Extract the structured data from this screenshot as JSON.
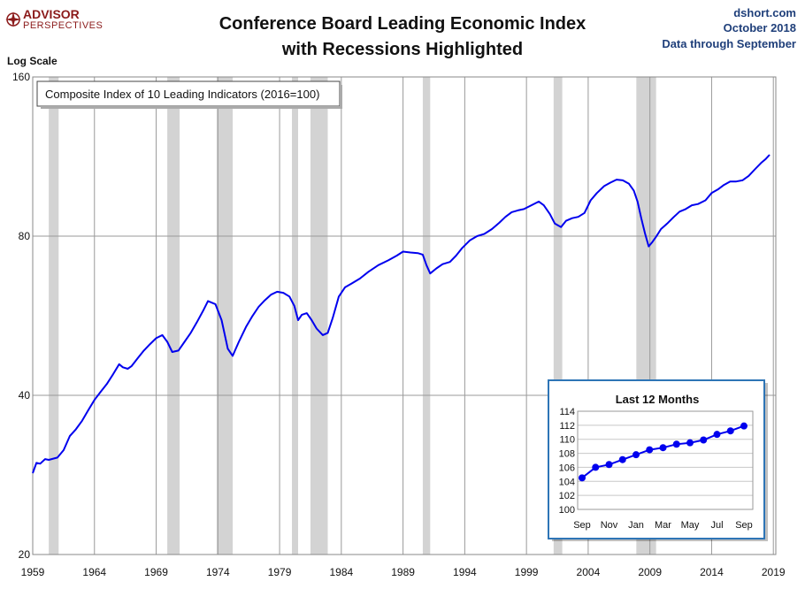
{
  "header": {
    "logo_line1": "ADVISOR",
    "logo_line2": "PERSPECTIVES",
    "source_site": "dshort.com",
    "source_date": "October 2018",
    "source_note": "Data through September"
  },
  "colors": {
    "series": "#0000ee",
    "recession": "#d3d3d3",
    "grid": "#9a9a9a",
    "logo": "#8b1a1a",
    "source_text": "#1f3f7a",
    "inset_border": "#2e75b6"
  },
  "chart_data": [
    {
      "type": "line",
      "title": "Conference Board Leading Economic Index with Recessions Highlighted",
      "title_lines": [
        "Conference Board Leading Economic Index",
        "with Recessions Highlighted"
      ],
      "ylabel": "Log Scale",
      "y_scale": "log",
      "ylim": [
        20,
        160
      ],
      "y_ticks": [
        20,
        40,
        80,
        160
      ],
      "xlim": [
        1959,
        2019.2
      ],
      "x_ticks": [
        1959,
        1964,
        1969,
        1974,
        1979,
        1984,
        1989,
        1994,
        1999,
        2004,
        2009,
        2014,
        2019
      ],
      "grid": true,
      "legend": {
        "label": "Composite Index of 10 Leading Indicators (2016=100)",
        "placement": "top-left"
      },
      "recessions": [
        [
          1960.3,
          1961.1
        ],
        [
          1969.9,
          1970.9
        ],
        [
          1973.9,
          1975.2
        ],
        [
          1980.0,
          1980.5
        ],
        [
          1981.5,
          1982.9
        ],
        [
          1990.6,
          1991.2
        ],
        [
          2001.2,
          2001.9
        ],
        [
          2007.9,
          2009.5
        ]
      ],
      "series": [
        {
          "name": "Composite Index of 10 Leading Indicators (2016=100)",
          "x": [
            1959.0,
            1959.3,
            1959.6,
            1960.0,
            1960.3,
            1961.0,
            1961.5,
            1962.0,
            1962.5,
            1963.0,
            1963.5,
            1964.0,
            1964.5,
            1965.0,
            1965.5,
            1966.0,
            1966.3,
            1966.7,
            1967.0,
            1967.5,
            1968.0,
            1968.5,
            1969.0,
            1969.5,
            1969.9,
            1970.3,
            1970.8,
            1971.3,
            1971.8,
            1972.3,
            1972.8,
            1973.2,
            1973.8,
            1974.3,
            1974.8,
            1975.2,
            1975.7,
            1976.3,
            1976.8,
            1977.3,
            1977.8,
            1978.3,
            1978.8,
            1979.3,
            1979.8,
            1980.2,
            1980.5,
            1980.8,
            1981.2,
            1981.6,
            1982.0,
            1982.5,
            1982.9,
            1983.3,
            1983.8,
            1984.3,
            1984.8,
            1985.5,
            1986.2,
            1987.0,
            1987.8,
            1988.5,
            1989.0,
            1989.6,
            1990.2,
            1990.6,
            1990.9,
            1991.2,
            1991.7,
            1992.2,
            1992.8,
            1993.3,
            1993.8,
            1994.4,
            1995.0,
            1995.6,
            1996.2,
            1996.8,
            1997.3,
            1997.8,
            1998.3,
            1998.8,
            1999.4,
            2000.0,
            2000.4,
            2000.9,
            2001.3,
            2001.8,
            2002.2,
            2002.7,
            2003.2,
            2003.7,
            2004.2,
            2004.7,
            2005.3,
            2005.8,
            2006.3,
            2006.8,
            2007.3,
            2007.7,
            2008.0,
            2008.3,
            2008.6,
            2008.9,
            2009.2,
            2009.5,
            2009.9,
            2010.4,
            2010.9,
            2011.4,
            2011.9,
            2012.4,
            2012.9,
            2013.5,
            2014.0,
            2014.5,
            2015.0,
            2015.5,
            2016.0,
            2016.5,
            2017.0,
            2017.5,
            2018.0,
            2018.4,
            2018.7
          ],
          "y": [
            28.5,
            29.8,
            29.7,
            30.3,
            30.2,
            30.5,
            31.5,
            33.5,
            34.5,
            35.8,
            37.5,
            39.2,
            40.6,
            42.0,
            43.8,
            45.8,
            45.2,
            44.9,
            45.4,
            47.0,
            48.6,
            50.0,
            51.3,
            52.0,
            50.5,
            48.3,
            48.6,
            50.5,
            52.5,
            55.0,
            57.8,
            60.3,
            59.5,
            55.5,
            49.0,
            47.5,
            50.5,
            54.0,
            56.5,
            58.8,
            60.5,
            62.0,
            62.8,
            62.5,
            61.5,
            59.0,
            55.5,
            56.8,
            57.2,
            55.5,
            53.5,
            52.0,
            52.5,
            56.0,
            61.5,
            64.0,
            65.0,
            66.5,
            68.5,
            70.5,
            72.0,
            73.5,
            74.8,
            74.5,
            74.3,
            73.8,
            70.5,
            68.0,
            69.5,
            70.8,
            71.5,
            73.5,
            76.0,
            78.5,
            80.0,
            80.8,
            82.5,
            84.8,
            87.0,
            88.8,
            89.5,
            90.0,
            91.5,
            93.0,
            91.5,
            88.0,
            84.5,
            83.2,
            85.5,
            86.5,
            87.0,
            88.5,
            93.5,
            96.5,
            99.5,
            101.0,
            102.3,
            102.0,
            100.5,
            97.5,
            93.0,
            86.5,
            81.0,
            76.5,
            78.0,
            79.8,
            82.5,
            84.5,
            86.8,
            89.0,
            90.0,
            91.5,
            92.0,
            93.5,
            96.5,
            98.0,
            100.0,
            101.5,
            101.5,
            102.0,
            104.0,
            107.0,
            110.0,
            112.0,
            114.0
          ]
        }
      ]
    },
    {
      "type": "line",
      "title": "Last 12 Months",
      "ylim": [
        100,
        114
      ],
      "y_ticks": [
        "100",
        "102",
        "104",
        "106",
        "108",
        "110",
        "112",
        "114"
      ],
      "tick_labels_x": [
        "Sep",
        "Nov",
        "Jan",
        "Mar",
        "May",
        "Jul",
        "Sep"
      ],
      "grid": true,
      "series": [
        {
          "x": [
            0,
            1,
            2,
            3,
            4,
            5,
            6,
            7,
            8,
            9,
            10,
            11,
            12
          ],
          "values": [
            104.5,
            106.0,
            106.4,
            107.1,
            107.8,
            108.5,
            108.8,
            109.3,
            109.5,
            109.9,
            110.7,
            111.2,
            111.9
          ]
        }
      ]
    }
  ]
}
